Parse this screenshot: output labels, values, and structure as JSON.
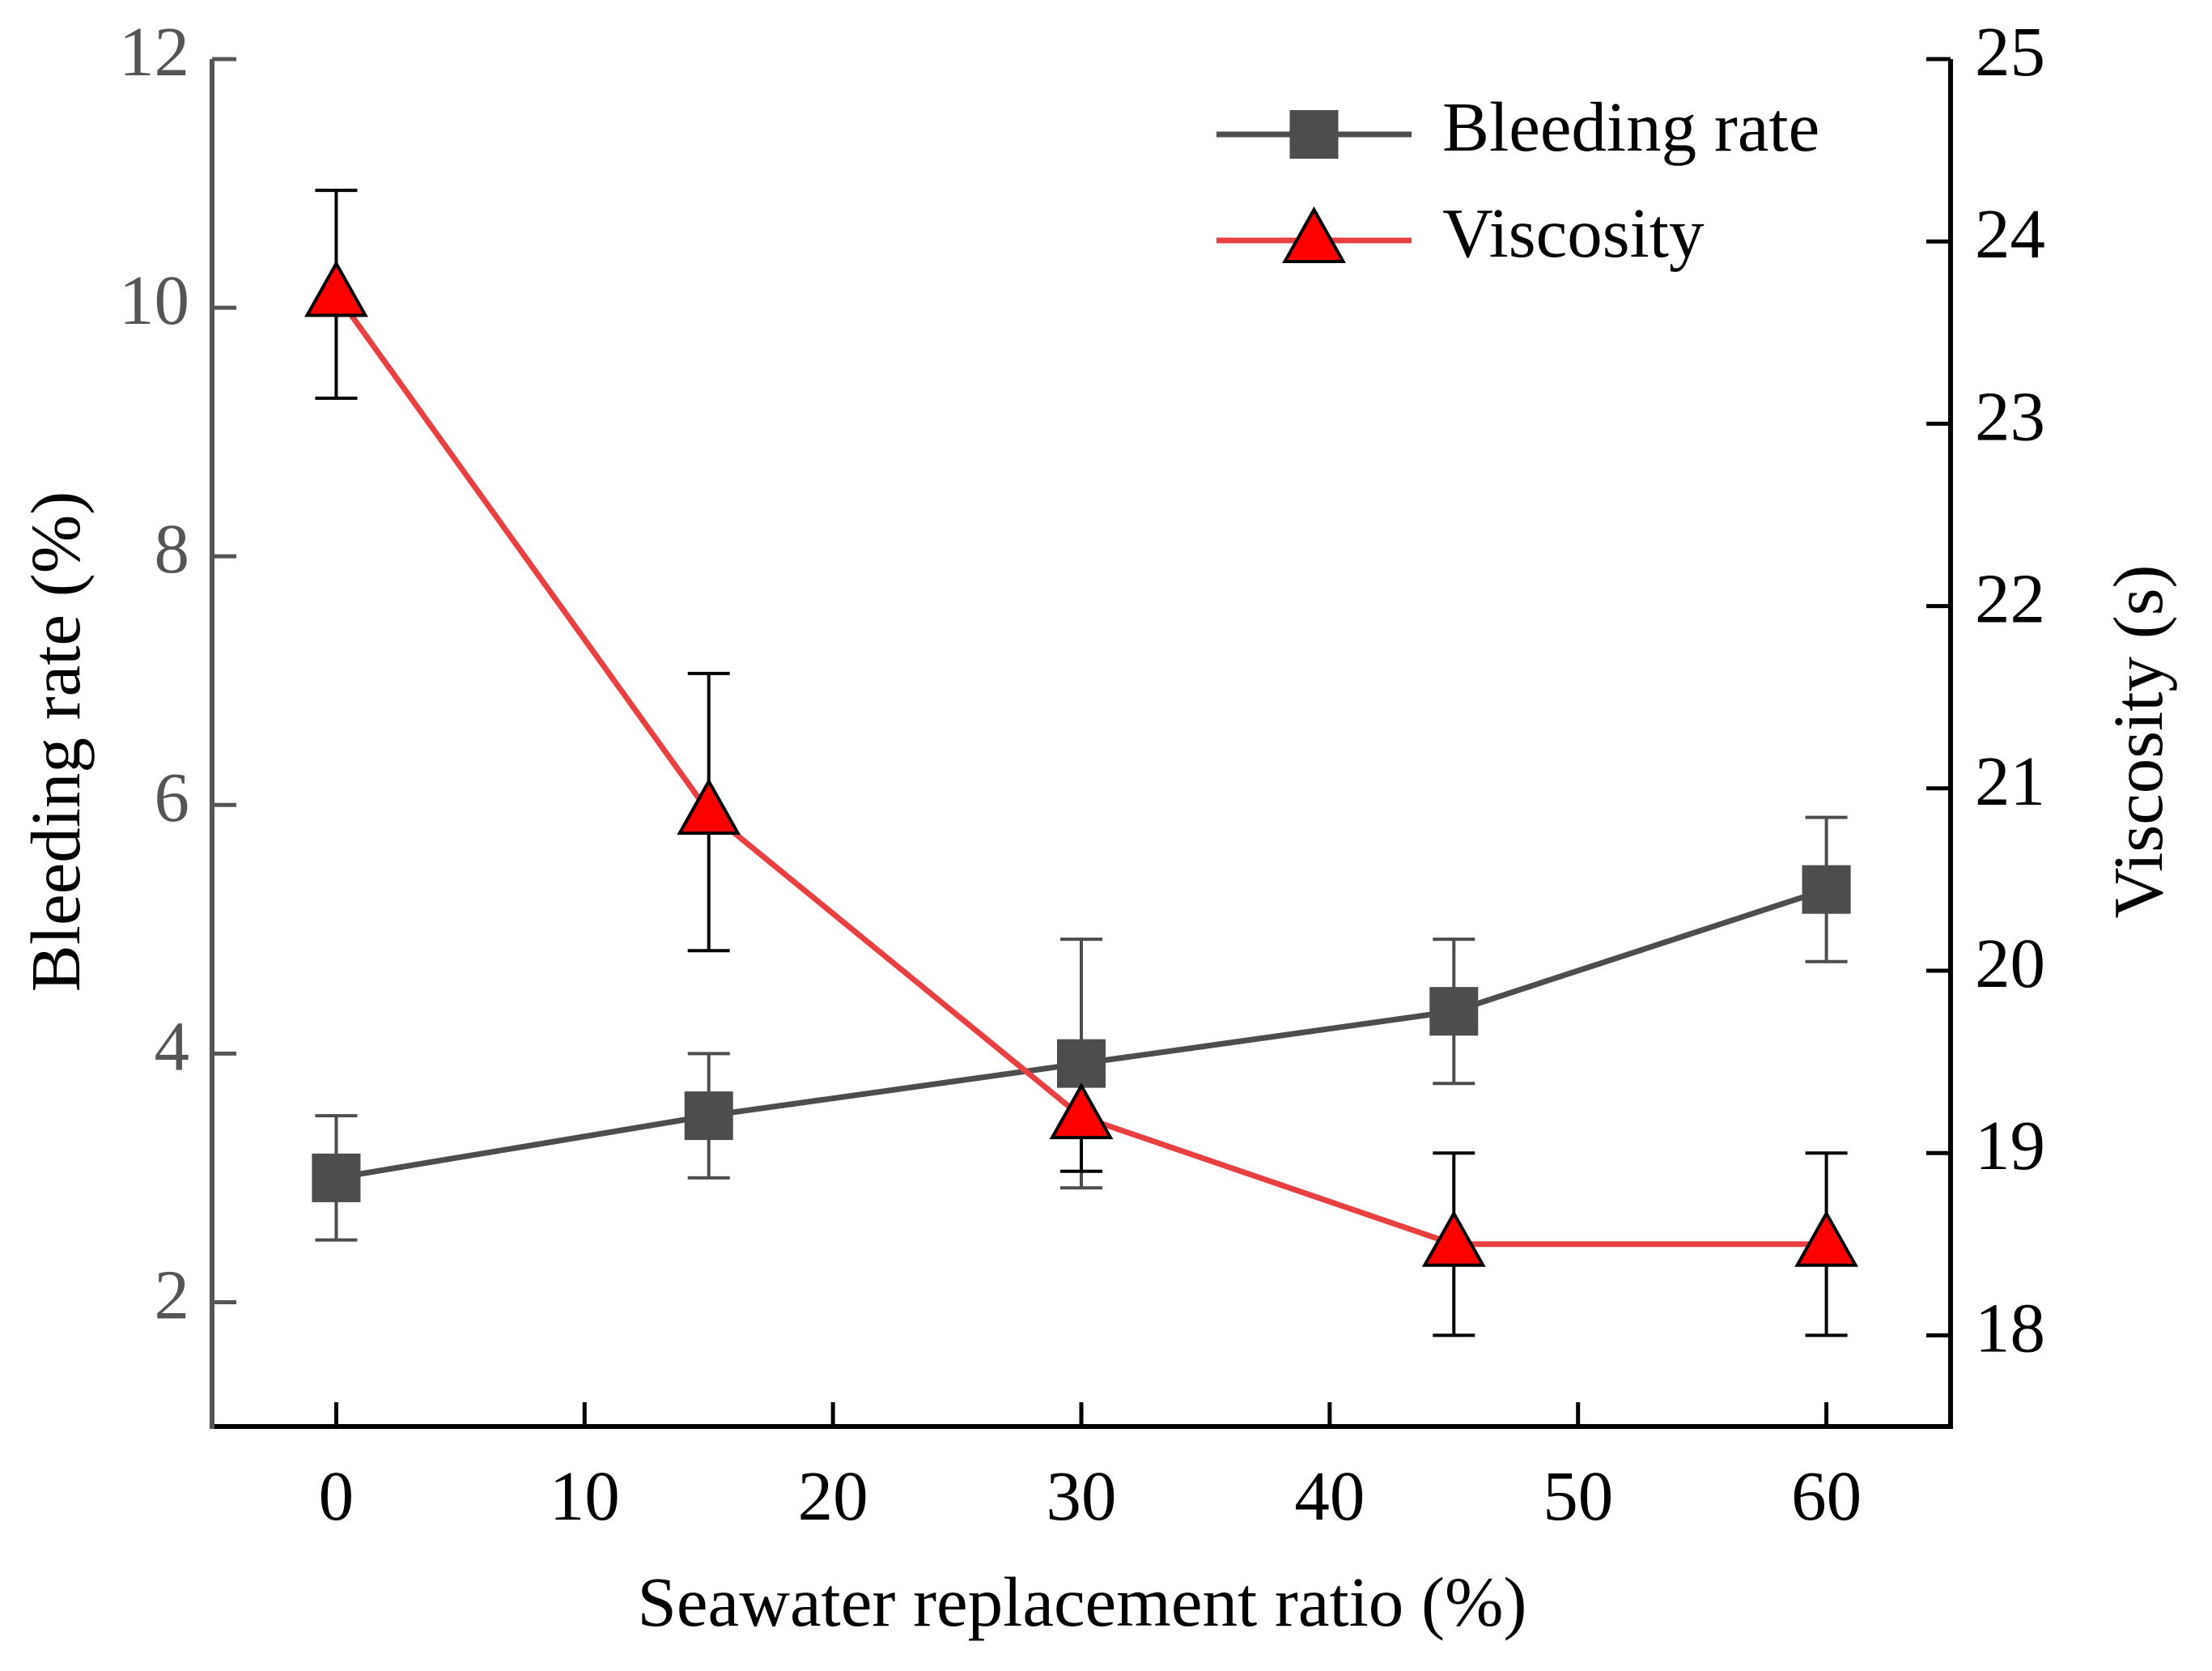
{
  "chart_data": {
    "type": "line",
    "x_label": "Seawater replacement ratio (%)",
    "y_label": "Bleeding rate (%)",
    "y2_label": "Viscosity (s)",
    "x": [
      0,
      15,
      30,
      45,
      60
    ],
    "xlim": [
      -5,
      65
    ],
    "xticks": [
      0,
      10,
      20,
      30,
      40,
      50,
      60
    ],
    "ylim": [
      1,
      12
    ],
    "yticks": [
      2,
      4,
      6,
      8,
      10,
      12
    ],
    "y2lim": [
      17.5,
      25
    ],
    "y2ticks": [
      18,
      19,
      20,
      21,
      22,
      23,
      24,
      25
    ],
    "legend": "top-right",
    "series": [
      {
        "name": "Bleeding rate",
        "color": "#4d4d4d",
        "marker": "square",
        "marker_color": "#4d4d4d",
        "values": [
          3.0,
          3.5,
          3.92,
          4.34,
          5.32
        ],
        "errors": [
          0.5,
          0.5,
          1.0,
          0.58,
          0.58
        ]
      },
      {
        "name": "Viscosity",
        "color": "#e84040",
        "marker": "triangle",
        "marker_color": "#ff0000",
        "axis": "y2",
        "values": [
          23.71,
          20.87,
          19.2,
          18.5,
          18.5
        ],
        "errors": [
          0.57,
          0.76,
          0.3,
          0.5,
          0.5
        ]
      }
    ]
  }
}
